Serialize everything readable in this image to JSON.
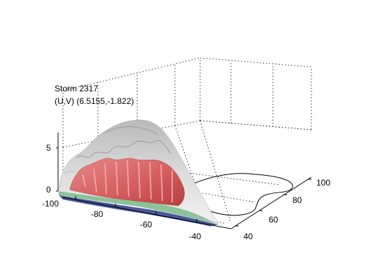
{
  "chart_data": {
    "type": "surface",
    "title_lines": [
      "Storm 2317",
      "(U,V) (6.5155,-1.822)"
    ],
    "x_axis": {
      "ticks": [
        -100,
        -80,
        -60,
        -40
      ],
      "range": [
        -100,
        -35
      ]
    },
    "y_axis": {
      "ticks": [
        40,
        60,
        80,
        100
      ],
      "range": [
        40,
        100
      ]
    },
    "z_axis": {
      "ticks": [
        0,
        5
      ],
      "range": [
        0,
        8
      ]
    },
    "grid": true,
    "isosurfaces": [
      {
        "level": "outer",
        "color": "#c9c9c9"
      },
      {
        "level": "middle",
        "color": "#e07070"
      },
      {
        "level": "base-green",
        "color": "#7fbf8f"
      },
      {
        "level": "base-blue",
        "color": "#2a3a8a"
      }
    ],
    "floor_contour": {
      "color": "#000000"
    }
  }
}
